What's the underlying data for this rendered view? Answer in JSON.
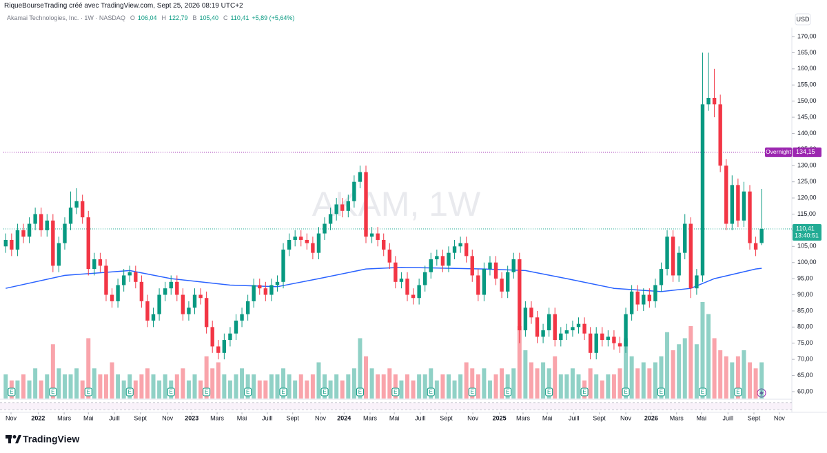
{
  "chart_data": {
    "type": "candlestick",
    "header": "RiqueBourseTrading créé avec TradingView.com, Sept 25, 2026 08:19 UTC+2",
    "symbol": "Akamai Technologies, Inc. · 1W · NASDAQ",
    "legend": [
      {
        "key": "O",
        "text": "106,04"
      },
      {
        "key": "H",
        "text": "122,79"
      },
      {
        "key": "B",
        "text": "105,40"
      },
      {
        "key": "C",
        "text": "110,41"
      }
    ],
    "change": "+5,89 (+5,64%)",
    "watermark": "AKAM, 1W",
    "currency": "USD",
    "brand": "TradingView",
    "up_color": "#089981",
    "down_color": "#f23645",
    "open": [
      105,
      107,
      104,
      110,
      108,
      112,
      115,
      110,
      113,
      99,
      106,
      112,
      117,
      119,
      114,
      98,
      101,
      99,
      90,
      88,
      93,
      96,
      97,
      94,
      88,
      82,
      84,
      90,
      92,
      94,
      90,
      84,
      86,
      90,
      89,
      80,
      74,
      72,
      76,
      78,
      82,
      84,
      88,
      93,
      92,
      90,
      93,
      94,
      104,
      107,
      108,
      107,
      106,
      103,
      109,
      112,
      115,
      118,
      116,
      119,
      125,
      128,
      108,
      109,
      107,
      104,
      100,
      94,
      95,
      90,
      89,
      93,
      97,
      101,
      102,
      99,
      103,
      105,
      106,
      102,
      96,
      90,
      98,
      100,
      95,
      91,
      97,
      101,
      79,
      86,
      83,
      77,
      79,
      84,
      76,
      78,
      79,
      80,
      81,
      78,
      72,
      78,
      76,
      77,
      75,
      74,
      84,
      91,
      87,
      90,
      88,
      93,
      98,
      108,
      96,
      103,
      112,
      92,
      96,
      149,
      151,
      149,
      130,
      112,
      124,
      113,
      122,
      106,
      106.04
    ],
    "high": [
      109,
      109,
      112,
      112,
      114,
      117,
      117,
      115,
      115,
      108,
      114,
      122,
      123,
      121,
      116,
      103,
      103,
      101,
      92,
      95,
      98,
      99,
      99,
      96,
      90,
      86,
      92,
      94,
      96,
      96,
      92,
      88,
      92,
      92,
      91,
      82,
      76,
      78,
      80,
      84,
      86,
      90,
      95,
      95,
      94,
      95,
      96,
      106,
      109,
      110,
      110,
      109,
      108,
      111,
      114,
      117,
      120,
      120,
      121,
      127,
      130,
      130,
      111,
      111,
      109,
      106,
      102,
      97,
      97,
      92,
      95,
      99,
      103,
      104,
      104,
      105,
      107,
      108,
      108,
      104,
      98,
      100,
      102,
      102,
      97,
      99,
      103,
      103,
      88,
      88,
      85,
      81,
      86,
      86,
      80,
      81,
      82,
      83,
      83,
      80,
      80,
      80,
      79,
      79,
      77,
      86,
      93,
      93,
      92,
      92,
      95,
      100,
      110,
      110,
      105,
      115,
      114,
      98,
      165,
      165,
      160,
      152,
      132,
      127,
      126,
      125,
      124,
      108,
      122.79
    ],
    "low": [
      103,
      102,
      102,
      106,
      106,
      110,
      108,
      108,
      97,
      97,
      104,
      110,
      115,
      112,
      96,
      96,
      97,
      88,
      86,
      86,
      91,
      94,
      92,
      86,
      80,
      80,
      82,
      88,
      90,
      88,
      82,
      82,
      84,
      87,
      78,
      72,
      70,
      70,
      74,
      76,
      80,
      82,
      86,
      90,
      88,
      88,
      91,
      92,
      102,
      105,
      105,
      104,
      101,
      101,
      107,
      110,
      113,
      114,
      114,
      117,
      123,
      106,
      106,
      105,
      102,
      98,
      92,
      92,
      88,
      87,
      87,
      91,
      95,
      99,
      97,
      97,
      101,
      103,
      100,
      94,
      88,
      88,
      96,
      93,
      89,
      89,
      95,
      75,
      77,
      81,
      75,
      75,
      77,
      74,
      74,
      76,
      77,
      78,
      76,
      70,
      70,
      74,
      74,
      73,
      72,
      72,
      82,
      85,
      85,
      86,
      86,
      91,
      96,
      94,
      94,
      101,
      89,
      90,
      94,
      147,
      145,
      128,
      110,
      110,
      111,
      111,
      104,
      102,
      105.4
    ],
    "close": [
      107,
      104,
      110,
      108,
      112,
      115,
      110,
      113,
      99,
      106,
      112,
      117,
      119,
      114,
      98,
      101,
      99,
      90,
      88,
      93,
      96,
      97,
      94,
      88,
      82,
      84,
      90,
      92,
      94,
      90,
      84,
      86,
      90,
      89,
      80,
      74,
      72,
      76,
      78,
      82,
      84,
      88,
      93,
      92,
      90,
      93,
      94,
      104,
      107,
      108,
      107,
      106,
      103,
      109,
      112,
      115,
      118,
      116,
      119,
      125,
      128,
      108,
      109,
      107,
      104,
      100,
      94,
      95,
      90,
      89,
      93,
      97,
      101,
      102,
      99,
      103,
      105,
      106,
      102,
      96,
      90,
      98,
      100,
      95,
      91,
      97,
      101,
      79,
      86,
      83,
      77,
      79,
      84,
      76,
      78,
      79,
      80,
      81,
      78,
      72,
      78,
      76,
      77,
      75,
      74,
      84,
      91,
      87,
      90,
      88,
      93,
      98,
      108,
      96,
      103,
      112,
      92,
      96,
      149,
      151,
      149,
      130,
      112,
      124,
      113,
      122,
      106,
      104,
      110.41
    ],
    "volume": [
      4,
      3,
      3,
      4,
      3,
      5,
      3,
      4,
      9,
      5,
      4,
      4,
      5,
      3,
      10,
      5,
      4,
      4,
      6,
      4,
      3,
      4,
      3,
      4,
      5,
      4,
      3,
      4,
      3,
      4,
      5,
      3,
      4,
      3,
      7,
      5,
      6,
      4,
      3,
      4,
      5,
      4,
      4,
      3,
      3,
      4,
      4,
      5,
      4,
      3,
      4,
      3,
      4,
      6,
      4,
      3,
      4,
      3,
      4,
      5,
      10,
      7,
      5,
      4,
      4,
      5,
      4,
      3,
      4,
      3,
      4,
      4,
      5,
      3,
      4,
      4,
      3,
      4,
      6,
      5,
      4,
      5,
      3,
      4,
      5,
      4,
      5,
      12,
      8,
      6,
      5,
      6,
      5,
      7,
      4,
      4,
      5,
      4,
      3,
      5,
      4,
      3,
      4,
      4,
      5,
      10,
      7,
      5,
      6,
      5,
      6,
      7,
      11,
      8,
      9,
      10,
      12,
      9,
      16,
      14,
      10,
      8,
      7,
      6,
      7,
      8,
      6,
      5,
      6
    ],
    "ma": {
      "color": "#2962ff",
      "x": [
        0,
        10,
        21,
        28,
        38,
        46,
        53,
        61,
        67,
        81,
        88,
        95,
        103,
        111,
        116,
        120,
        127,
        128
      ],
      "values": [
        92,
        96,
        97.5,
        95,
        93,
        92.5,
        95,
        98,
        98.5,
        98,
        97.5,
        95,
        92,
        91,
        92,
        95,
        98,
        98.2
      ]
    },
    "lines": [
      {
        "name": "Overnight",
        "value": 134.15,
        "label": "134,15",
        "color": "#9c27b0"
      },
      {
        "value": 110.41,
        "label": "110,41",
        "countdown": "13:40:51",
        "color": "#22ab94"
      }
    ],
    "earnings": {
      "label": "E",
      "x": [
        1,
        8,
        14,
        21,
        28,
        34,
        41,
        47,
        54,
        60,
        66,
        72,
        79,
        85,
        92,
        98,
        105,
        111,
        118,
        124
      ]
    },
    "ylim": [
      57.86,
      172.78
    ],
    "yticks": [
      {
        "value": 60,
        "label": "60,00"
      },
      {
        "value": 65,
        "label": "65,00"
      },
      {
        "value": 70,
        "label": "70,00"
      },
      {
        "value": 75,
        "label": "75,00"
      },
      {
        "value": 80,
        "label": "80,00"
      },
      {
        "value": 85,
        "label": "85,00"
      },
      {
        "value": 90,
        "label": "90,00"
      },
      {
        "value": 95,
        "label": "95,00"
      },
      {
        "value": 100,
        "label": "100,00"
      },
      {
        "value": 105,
        "label": "105,00"
      },
      {
        "value": 110,
        "label": "110,00"
      },
      {
        "value": 115,
        "label": "115,00"
      },
      {
        "value": 120,
        "label": "120,00"
      },
      {
        "value": 125,
        "label": "125,00"
      },
      {
        "value": 130,
        "label": "130,00"
      },
      {
        "value": 135,
        "label": "135,00"
      },
      {
        "value": 140,
        "label": "140,00"
      },
      {
        "value": 145,
        "label": "145,00"
      },
      {
        "value": 150,
        "label": "150,00"
      },
      {
        "value": 155,
        "label": "155,00"
      },
      {
        "value": 160,
        "label": "160,00"
      },
      {
        "value": 165,
        "label": "165,00"
      },
      {
        "value": 170,
        "label": "170,00"
      }
    ],
    "xlim": [
      -0.5,
      133
    ],
    "xticks": [
      {
        "value": 0.9,
        "label": "Nov"
      },
      {
        "value": 5.5,
        "label": "2022"
      },
      {
        "value": 9.9,
        "label": "Mars"
      },
      {
        "value": 14,
        "label": "Mai"
      },
      {
        "value": 18.4,
        "label": "Juill"
      },
      {
        "value": 22.8,
        "label": "Sept"
      },
      {
        "value": 27.4,
        "label": "Nov"
      },
      {
        "value": 31.5,
        "label": "2023"
      },
      {
        "value": 35.8,
        "label": "Mars"
      },
      {
        "value": 40,
        "label": "Mai"
      },
      {
        "value": 44.3,
        "label": "Juill"
      },
      {
        "value": 48.6,
        "label": "Sept"
      },
      {
        "value": 53.3,
        "label": "Nov"
      },
      {
        "value": 57.3,
        "label": "2024"
      },
      {
        "value": 61.7,
        "label": "Mars"
      },
      {
        "value": 65.8,
        "label": "Mai"
      },
      {
        "value": 70.2,
        "label": "Juill"
      },
      {
        "value": 74.6,
        "label": "Sept"
      },
      {
        "value": 79.1,
        "label": "Nov"
      },
      {
        "value": 83.6,
        "label": "2025"
      },
      {
        "value": 87.6,
        "label": "Mars"
      },
      {
        "value": 91.7,
        "label": "Mai"
      },
      {
        "value": 96.2,
        "label": "Juill"
      },
      {
        "value": 100.5,
        "label": "Sept"
      },
      {
        "value": 105,
        "label": "Nov"
      },
      {
        "value": 109.3,
        "label": "2026"
      },
      {
        "value": 113.6,
        "label": "Mars"
      },
      {
        "value": 117.8,
        "label": "Mai"
      },
      {
        "value": 122.3,
        "label": "Juill"
      },
      {
        "value": 126.7,
        "label": "Sept"
      },
      {
        "value": 131,
        "label": "Nov"
      }
    ]
  }
}
